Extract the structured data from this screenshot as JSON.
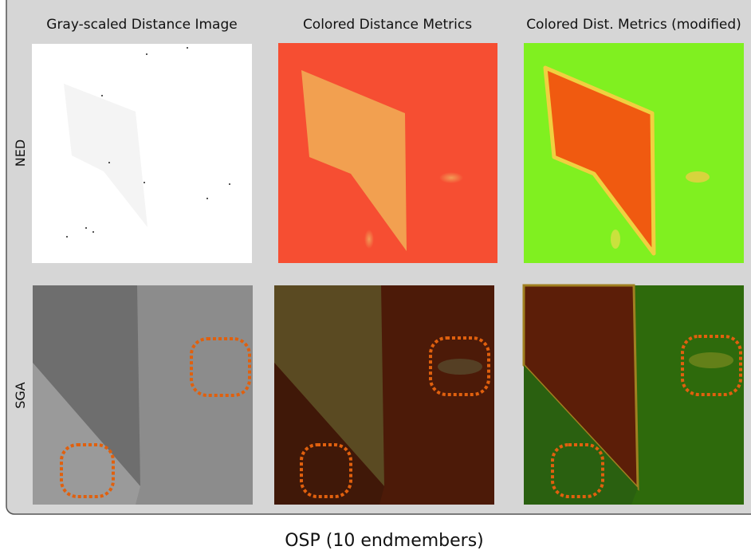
{
  "columns": [
    "Gray-scaled Distance Image",
    "Colored Distance Metrics",
    "Colored Dist. Metrics (modified)"
  ],
  "rows": [
    "NED",
    "SGA"
  ],
  "caption": "OSP (10 endmembers)"
}
